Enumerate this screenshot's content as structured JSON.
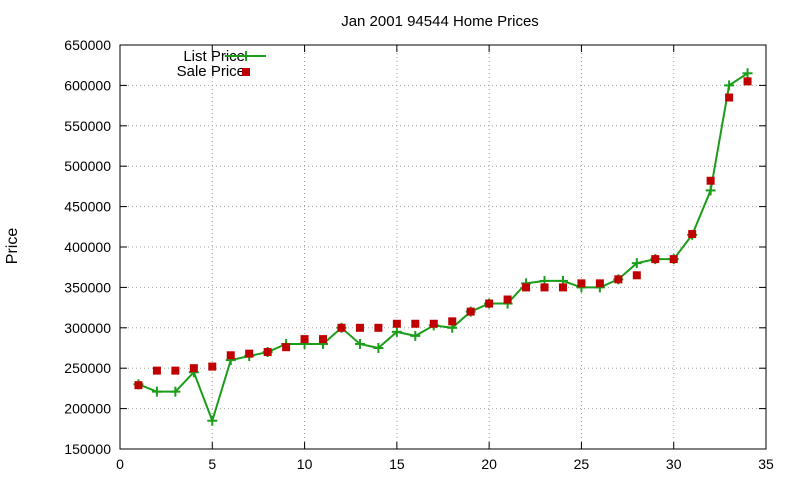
{
  "chart_data": {
    "type": "line",
    "title": "Jan 2001 94544 Home Prices",
    "xlabel": "",
    "ylabel": "Price",
    "xlim": [
      0,
      35
    ],
    "ylim": [
      150000,
      650000
    ],
    "x_ticks": [
      0,
      5,
      10,
      15,
      20,
      25,
      30,
      35
    ],
    "y_ticks": [
      150000,
      200000,
      250000,
      300000,
      350000,
      400000,
      450000,
      500000,
      550000,
      600000,
      650000
    ],
    "grid": true,
    "legend_position": "top-left",
    "series": [
      {
        "name": "List Price",
        "style": "lines+points",
        "marker": "plus",
        "color": "#1a9e1a",
        "x": [
          1,
          2,
          3,
          4,
          5,
          6,
          7,
          8,
          9,
          10,
          11,
          12,
          13,
          14,
          15,
          16,
          17,
          18,
          19,
          20,
          21,
          22,
          23,
          24,
          25,
          26,
          27,
          28,
          29,
          30,
          31,
          32,
          33,
          34
        ],
        "y": [
          230000,
          221000,
          221000,
          245000,
          185000,
          260000,
          265000,
          270000,
          280000,
          280000,
          280000,
          300000,
          280000,
          275000,
          295000,
          290000,
          303000,
          300000,
          320000,
          330000,
          330000,
          355000,
          358000,
          358000,
          350000,
          350000,
          360000,
          380000,
          385000,
          385000,
          415000,
          470000,
          600000,
          615000
        ]
      },
      {
        "name": "Sale Price",
        "style": "points",
        "marker": "square",
        "color": "#c00000",
        "x": [
          1,
          2,
          3,
          4,
          5,
          6,
          7,
          8,
          9,
          10,
          11,
          12,
          13,
          14,
          15,
          16,
          17,
          18,
          19,
          20,
          21,
          22,
          23,
          24,
          25,
          26,
          27,
          28,
          29,
          30,
          31,
          32,
          33,
          34
        ],
        "y": [
          229000,
          247000,
          247000,
          250000,
          252000,
          266000,
          268000,
          270000,
          276000,
          286000,
          286000,
          300000,
          300000,
          300000,
          305000,
          305000,
          305000,
          308000,
          320000,
          330000,
          335000,
          350000,
          350000,
          350000,
          355000,
          355000,
          360000,
          365000,
          385000,
          385000,
          416000,
          482000,
          585000,
          605000
        ]
      }
    ]
  }
}
